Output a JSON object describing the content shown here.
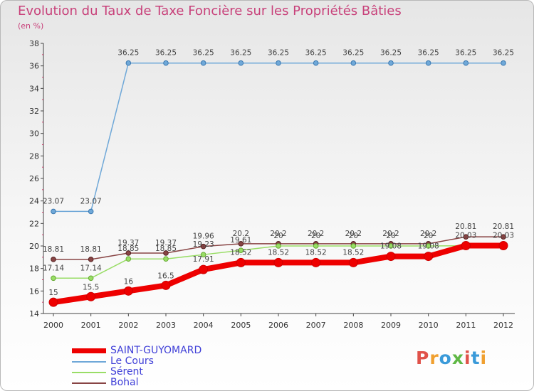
{
  "header": {
    "title": "Evolution du Taux de Taxe Foncière sur les Propriétés Bâties",
    "unit": "(en %)"
  },
  "logo": {
    "text": "Proxiti",
    "colors": [
      "#e0524a",
      "#f0a030",
      "#3a9ad9",
      "#5fb845",
      "#e0524a",
      "#3a9ad9",
      "#f0a030"
    ]
  },
  "chart_data": {
    "type": "line",
    "title": "Evolution du Taux de Taxe Foncière sur les Propriétés Bâties",
    "ylabel": "(en %)",
    "xlabel": "",
    "x": [
      "2000",
      "2001",
      "2002",
      "2003",
      "2004",
      "2005",
      "2006",
      "2007",
      "2008",
      "2009",
      "2010",
      "2011",
      "2012"
    ],
    "ylim": [
      14,
      38
    ],
    "yticks": [
      "14",
      "16",
      "18",
      "20",
      "22",
      "24",
      "26",
      "28",
      "30",
      "32",
      "34",
      "36",
      "38"
    ],
    "legend_position": "bottom-left",
    "series": [
      {
        "name": "SAINT-GUYOMARD",
        "color": "#ee0000",
        "values": [
          15,
          15.5,
          16,
          16.5,
          17.91,
          18.52,
          18.52,
          18.52,
          18.52,
          19.08,
          19.08,
          20.03,
          20.03
        ],
        "labels": [
          "15",
          "15.5",
          "16",
          "16.5",
          "",
          "",
          "",
          "",
          "",
          "",
          "",
          "",
          ""
        ]
      },
      {
        "name": "Le Cours",
        "color": "#6fa8d8",
        "values": [
          23.07,
          23.07,
          36.25,
          36.25,
          36.25,
          36.25,
          36.25,
          36.25,
          36.25,
          36.25,
          36.25,
          36.25,
          36.25
        ],
        "labels": [
          "23.07",
          "23.07",
          "36.25",
          "36.25",
          "36.25",
          "36.25",
          "36.25",
          "36.25",
          "36.25",
          "36.25",
          "36.25",
          "36.25",
          "36.25"
        ]
      },
      {
        "name": "Sérent",
        "color": "#99dd66",
        "values": [
          17.14,
          17.14,
          18.85,
          18.85,
          19.23,
          19.61,
          20,
          20,
          20,
          20,
          20,
          20.03,
          20.03
        ],
        "labels": [
          "17.14",
          "17.14",
          "18.85",
          "18.85",
          "19.23",
          "19.61",
          "20",
          "20",
          "20",
          "20",
          "20",
          "",
          ""
        ]
      },
      {
        "name": "Bohal",
        "color": "#884444",
        "values": [
          18.81,
          18.81,
          19.37,
          19.37,
          19.96,
          20.2,
          20.2,
          20.2,
          20.2,
          20.2,
          20.2,
          20.81,
          20.81
        ],
        "labels": [
          "18.81",
          "18.81",
          "19.37",
          "19.37",
          "19.96",
          "20.2",
          "20.2",
          "20.2",
          "20.2",
          "20.2",
          "20.2",
          "20.81",
          "20.81"
        ]
      }
    ],
    "extra_labels": [
      "17.91",
      "18.52",
      "18.52",
      "18.52",
      "18.52",
      "19.08",
      "19.08",
      "20.03",
      "20.03"
    ]
  }
}
